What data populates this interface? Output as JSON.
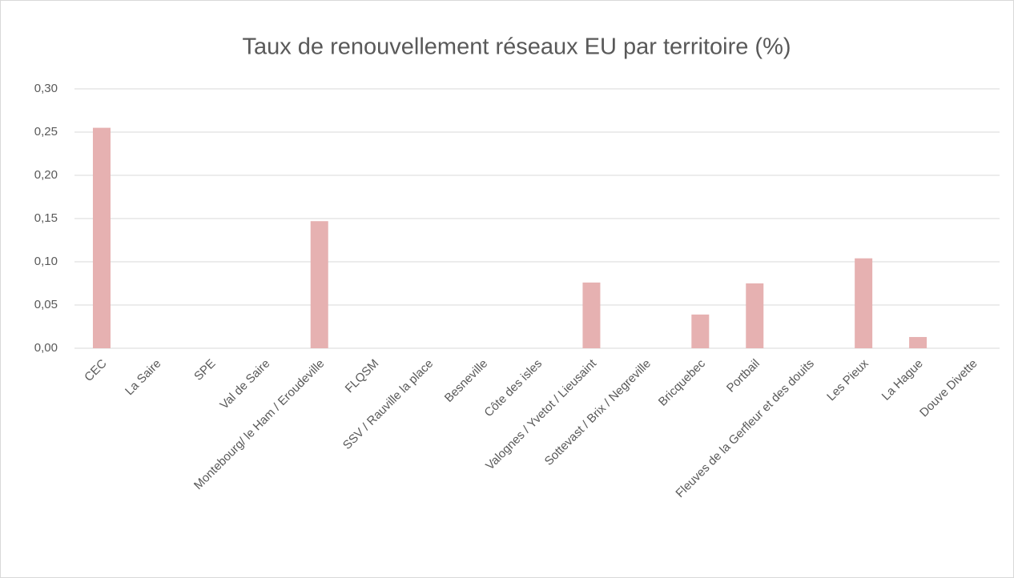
{
  "chart_data": {
    "type": "bar",
    "title": "Taux de renouvellement réseaux EU par territoire (%)",
    "categories": [
      "CEC",
      "La Saire",
      "SPE",
      "Val de Saire",
      "Montebourg/ le Ham / Eroudeville",
      "FLQSM",
      "SSV / Rauville la place",
      "Besneville",
      "Côte des isles",
      "Valognes / Yvetot / Lieusaint",
      "Sottevast / Brix / Negreville",
      "Bricquebec",
      "Portbail",
      "Fleuves de la Gerfleur et des douits",
      "Les Pieux",
      "La Hague",
      "Douve Divette"
    ],
    "values": [
      0.255,
      0,
      0,
      0,
      0.147,
      0,
      0,
      0,
      0,
      0.076,
      0,
      0.039,
      0.075,
      0,
      0.104,
      0.013,
      0
    ],
    "color": "#e6b1b1",
    "ylim": [
      0,
      0.3
    ],
    "yticks": [
      {
        "value": 0,
        "label": "0,00"
      },
      {
        "value": 0.05,
        "label": "0,05"
      },
      {
        "value": 0.1,
        "label": "0,10"
      },
      {
        "value": 0.15,
        "label": "0,15"
      },
      {
        "value": 0.2,
        "label": "0,20"
      },
      {
        "value": 0.25,
        "label": "0,25"
      },
      {
        "value": 0.3,
        "label": "0,30"
      }
    ],
    "grid": true
  }
}
